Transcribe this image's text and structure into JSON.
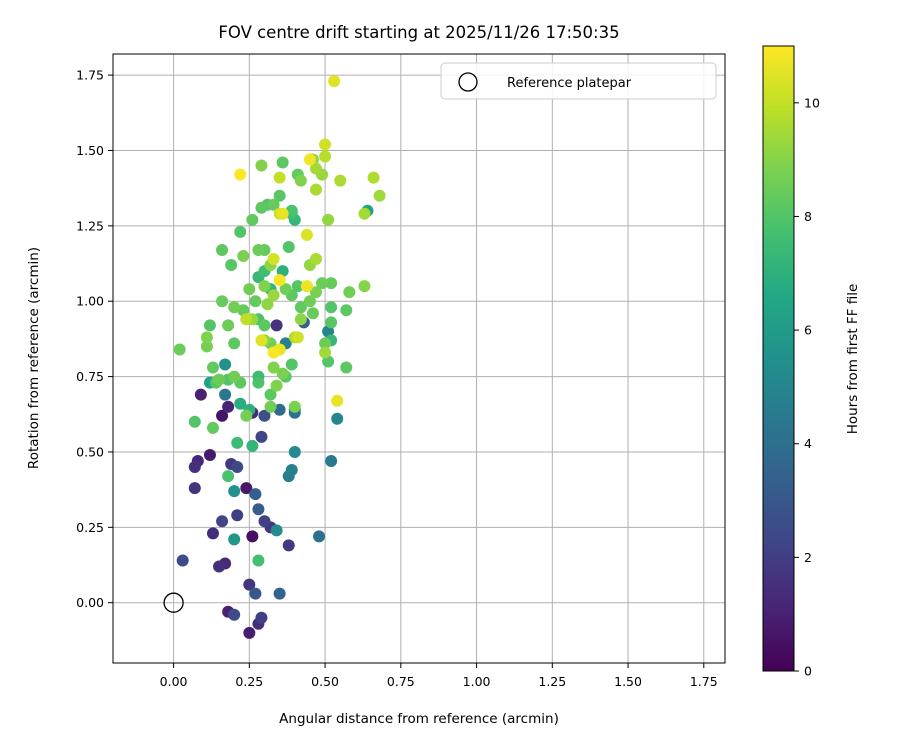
{
  "chart_data": {
    "type": "scatter",
    "title": "FOV centre drift starting at 2025/11/26 17:50:35",
    "xlabel": "Angular distance from reference (arcmin)",
    "ylabel": "Rotation from reference (arcmin)",
    "xlim": [
      -0.2,
      1.82
    ],
    "ylim": [
      -0.2,
      1.82
    ],
    "xticks": [
      0.0,
      0.25,
      0.5,
      0.75,
      1.0,
      1.25,
      1.5,
      1.75
    ],
    "yticks": [
      0.0,
      0.25,
      0.5,
      0.75,
      1.0,
      1.25,
      1.5,
      1.75
    ],
    "xtick_labels": [
      "0.00",
      "0.25",
      "0.50",
      "0.75",
      "1.00",
      "1.25",
      "1.50",
      "1.75"
    ],
    "ytick_labels": [
      "0.00",
      "0.25",
      "0.50",
      "0.75",
      "1.00",
      "1.25",
      "1.50",
      "1.75"
    ],
    "grid": true,
    "legend": {
      "position": "top-right",
      "entries": [
        "Reference platepar"
      ]
    },
    "reference_point": {
      "x": 0.0,
      "y": 0.0,
      "label": "Reference platepar"
    },
    "colorbar": {
      "label": "Hours from first FF file",
      "colormap": "viridis",
      "range": [
        0,
        11
      ],
      "ticks": [
        0,
        2,
        4,
        6,
        8,
        10
      ],
      "tick_labels": [
        "0",
        "2",
        "4",
        "6",
        "8",
        "10"
      ]
    },
    "points": [
      {
        "x": 0.03,
        "y": 0.14,
        "h": 2.5
      },
      {
        "x": 0.07,
        "y": 0.45,
        "h": 1.5
      },
      {
        "x": 0.08,
        "y": 0.47,
        "h": 1.2
      },
      {
        "x": 0.07,
        "y": 0.38,
        "h": 1.6
      },
      {
        "x": 0.09,
        "y": 0.69,
        "h": 1.0
      },
      {
        "x": 0.12,
        "y": 0.49,
        "h": 0.8
      },
      {
        "x": 0.13,
        "y": 0.23,
        "h": 1.4
      },
      {
        "x": 0.15,
        "y": 0.12,
        "h": 1.5
      },
      {
        "x": 0.17,
        "y": 0.13,
        "h": 1.3
      },
      {
        "x": 0.16,
        "y": 0.27,
        "h": 2.2
      },
      {
        "x": 0.16,
        "y": 0.62,
        "h": 0.6
      },
      {
        "x": 0.18,
        "y": 0.65,
        "h": 1.1
      },
      {
        "x": 0.19,
        "y": 0.46,
        "h": 1.8
      },
      {
        "x": 0.21,
        "y": 0.45,
        "h": 2.4
      },
      {
        "x": 0.21,
        "y": 0.29,
        "h": 2.0
      },
      {
        "x": 0.18,
        "y": -0.03,
        "h": 1.0
      },
      {
        "x": 0.2,
        "y": -0.04,
        "h": 2.5
      },
      {
        "x": 0.24,
        "y": 0.38,
        "h": 0.7
      },
      {
        "x": 0.25,
        "y": 0.06,
        "h": 1.7
      },
      {
        "x": 0.27,
        "y": 0.03,
        "h": 3.0
      },
      {
        "x": 0.25,
        "y": -0.1,
        "h": 0.9
      },
      {
        "x": 0.28,
        "y": -0.07,
        "h": 1.4
      },
      {
        "x": 0.29,
        "y": -0.05,
        "h": 2.0
      },
      {
        "x": 0.26,
        "y": 0.22,
        "h": 0.5
      },
      {
        "x": 0.28,
        "y": 0.31,
        "h": 3.2
      },
      {
        "x": 0.3,
        "y": 0.27,
        "h": 2.1
      },
      {
        "x": 0.32,
        "y": 0.25,
        "h": 1.7
      },
      {
        "x": 0.35,
        "y": 0.03,
        "h": 3.5
      },
      {
        "x": 0.38,
        "y": 0.19,
        "h": 1.8
      },
      {
        "x": 0.29,
        "y": 0.55,
        "h": 2.2
      },
      {
        "x": 0.27,
        "y": 0.36,
        "h": 3.3
      },
      {
        "x": 0.26,
        "y": 0.63,
        "h": 1.4
      },
      {
        "x": 0.3,
        "y": 0.62,
        "h": 2.6
      },
      {
        "x": 0.34,
        "y": 0.24,
        "h": 5.2
      },
      {
        "x": 0.48,
        "y": 0.22,
        "h": 4.1
      },
      {
        "x": 0.52,
        "y": 0.47,
        "h": 4.5
      },
      {
        "x": 0.54,
        "y": 0.61,
        "h": 5.0
      },
      {
        "x": 0.4,
        "y": 0.5,
        "h": 5.2
      },
      {
        "x": 0.39,
        "y": 0.44,
        "h": 4.8
      },
      {
        "x": 0.38,
        "y": 0.42,
        "h": 4.6
      },
      {
        "x": 0.4,
        "y": 0.63,
        "h": 4.0
      },
      {
        "x": 0.4,
        "y": 0.64,
        "h": 4.2
      },
      {
        "x": 0.35,
        "y": 0.64,
        "h": 3.8
      },
      {
        "x": 0.34,
        "y": 0.92,
        "h": 1.6
      },
      {
        "x": 0.43,
        "y": 0.93,
        "h": 3.4
      },
      {
        "x": 0.37,
        "y": 0.86,
        "h": 4.7
      },
      {
        "x": 0.51,
        "y": 0.9,
        "h": 5.0
      },
      {
        "x": 0.52,
        "y": 0.87,
        "h": 7.3
      },
      {
        "x": 0.2,
        "y": 0.37,
        "h": 5.6
      },
      {
        "x": 0.2,
        "y": 0.21,
        "h": 5.8
      },
      {
        "x": 0.28,
        "y": 0.14,
        "h": 7.7
      },
      {
        "x": 0.17,
        "y": 0.69,
        "h": 4.4
      },
      {
        "x": 0.17,
        "y": 0.79,
        "h": 5.6
      },
      {
        "x": 0.22,
        "y": 0.66,
        "h": 6.8
      },
      {
        "x": 0.21,
        "y": 0.53,
        "h": 7.5
      },
      {
        "x": 0.26,
        "y": 0.52,
        "h": 7.2
      },
      {
        "x": 0.25,
        "y": 0.64,
        "h": 7.0
      },
      {
        "x": 0.64,
        "y": 1.3,
        "h": 6.3
      },
      {
        "x": 0.12,
        "y": 0.73,
        "h": 6.3
      },
      {
        "x": 0.13,
        "y": 0.58,
        "h": 8.3
      },
      {
        "x": 0.07,
        "y": 0.6,
        "h": 8.0
      },
      {
        "x": 0.02,
        "y": 0.84,
        "h": 8.5
      },
      {
        "x": 0.11,
        "y": 0.85,
        "h": 8.7
      },
      {
        "x": 0.11,
        "y": 0.88,
        "h": 8.9
      },
      {
        "x": 0.12,
        "y": 0.92,
        "h": 8.0
      },
      {
        "x": 0.16,
        "y": 1.0,
        "h": 8.4
      },
      {
        "x": 0.16,
        "y": 1.17,
        "h": 8.2
      },
      {
        "x": 0.19,
        "y": 1.12,
        "h": 8.1
      },
      {
        "x": 0.18,
        "y": 0.92,
        "h": 8.5
      },
      {
        "x": 0.2,
        "y": 0.86,
        "h": 8.2
      },
      {
        "x": 0.2,
        "y": 0.98,
        "h": 8.6
      },
      {
        "x": 0.22,
        "y": 1.23,
        "h": 8.0
      },
      {
        "x": 0.23,
        "y": 1.15,
        "h": 8.8
      },
      {
        "x": 0.25,
        "y": 1.04,
        "h": 8.6
      },
      {
        "x": 0.26,
        "y": 1.27,
        "h": 8.3
      },
      {
        "x": 0.27,
        "y": 1.0,
        "h": 8.4
      },
      {
        "x": 0.28,
        "y": 1.17,
        "h": 8.5
      },
      {
        "x": 0.29,
        "y": 1.31,
        "h": 8.2
      },
      {
        "x": 0.29,
        "y": 1.45,
        "h": 8.9
      },
      {
        "x": 0.31,
        "y": 1.32,
        "h": 8.0
      },
      {
        "x": 0.33,
        "y": 1.32,
        "h": 8.4
      },
      {
        "x": 0.35,
        "y": 1.35,
        "h": 8.1
      },
      {
        "x": 0.36,
        "y": 1.46,
        "h": 8.2
      },
      {
        "x": 0.38,
        "y": 1.18,
        "h": 8.0
      },
      {
        "x": 0.39,
        "y": 1.3,
        "h": 7.8
      },
      {
        "x": 0.41,
        "y": 1.42,
        "h": 8.3
      },
      {
        "x": 0.42,
        "y": 1.4,
        "h": 8.9
      },
      {
        "x": 0.46,
        "y": 1.47,
        "h": 9.0
      },
      {
        "x": 0.47,
        "y": 1.44,
        "h": 9.5
      },
      {
        "x": 0.49,
        "y": 1.42,
        "h": 9.3
      },
      {
        "x": 0.47,
        "y": 1.37,
        "h": 9.6
      },
      {
        "x": 0.5,
        "y": 1.48,
        "h": 9.8
      },
      {
        "x": 0.51,
        "y": 1.27,
        "h": 9.2
      },
      {
        "x": 0.55,
        "y": 1.4,
        "h": 9.6
      },
      {
        "x": 0.63,
        "y": 1.29,
        "h": 9.5
      },
      {
        "x": 0.66,
        "y": 1.41,
        "h": 9.7
      },
      {
        "x": 0.68,
        "y": 1.35,
        "h": 9.4
      },
      {
        "x": 0.5,
        "y": 1.52,
        "h": 10.2
      },
      {
        "x": 0.53,
        "y": 1.73,
        "h": 10.5
      },
      {
        "x": 0.45,
        "y": 1.47,
        "h": 10.8
      },
      {
        "x": 0.22,
        "y": 1.42,
        "h": 11.0
      },
      {
        "x": 0.35,
        "y": 1.41,
        "h": 10.0
      },
      {
        "x": 0.36,
        "y": 1.29,
        "h": 10.6
      },
      {
        "x": 0.35,
        "y": 1.29,
        "h": 10.2
      },
      {
        "x": 0.44,
        "y": 1.22,
        "h": 10.4
      },
      {
        "x": 0.47,
        "y": 1.14,
        "h": 9.6
      },
      {
        "x": 0.45,
        "y": 1.12,
        "h": 9.2
      },
      {
        "x": 0.44,
        "y": 1.05,
        "h": 10.7
      },
      {
        "x": 0.32,
        "y": 1.12,
        "h": 9.1
      },
      {
        "x": 0.33,
        "y": 1.14,
        "h": 10.3
      },
      {
        "x": 0.3,
        "y": 1.05,
        "h": 8.9
      },
      {
        "x": 0.31,
        "y": 0.99,
        "h": 9.1
      },
      {
        "x": 0.33,
        "y": 1.02,
        "h": 9.3
      },
      {
        "x": 0.35,
        "y": 1.07,
        "h": 10.9
      },
      {
        "x": 0.37,
        "y": 1.04,
        "h": 8.6
      },
      {
        "x": 0.39,
        "y": 1.02,
        "h": 8.2
      },
      {
        "x": 0.41,
        "y": 1.05,
        "h": 8.0
      },
      {
        "x": 0.42,
        "y": 0.98,
        "h": 8.3
      },
      {
        "x": 0.45,
        "y": 1.0,
        "h": 8.6
      },
      {
        "x": 0.47,
        "y": 1.03,
        "h": 8.8
      },
      {
        "x": 0.49,
        "y": 1.06,
        "h": 8.5
      },
      {
        "x": 0.52,
        "y": 1.06,
        "h": 8.4
      },
      {
        "x": 0.58,
        "y": 1.03,
        "h": 8.6
      },
      {
        "x": 0.63,
        "y": 1.05,
        "h": 9.0
      },
      {
        "x": 0.57,
        "y": 0.97,
        "h": 8.2
      },
      {
        "x": 0.52,
        "y": 0.98,
        "h": 8.0
      },
      {
        "x": 0.52,
        "y": 0.93,
        "h": 8.1
      },
      {
        "x": 0.5,
        "y": 0.86,
        "h": 8.5
      },
      {
        "x": 0.5,
        "y": 0.83,
        "h": 9.4
      },
      {
        "x": 0.51,
        "y": 0.8,
        "h": 8.0
      },
      {
        "x": 0.57,
        "y": 0.78,
        "h": 8.2
      },
      {
        "x": 0.54,
        "y": 0.67,
        "h": 10.6
      },
      {
        "x": 0.46,
        "y": 0.96,
        "h": 8.4
      },
      {
        "x": 0.42,
        "y": 0.94,
        "h": 9.1
      },
      {
        "x": 0.4,
        "y": 0.88,
        "h": 9.6
      },
      {
        "x": 0.41,
        "y": 0.88,
        "h": 10.2
      },
      {
        "x": 0.39,
        "y": 0.79,
        "h": 8.0
      },
      {
        "x": 0.36,
        "y": 0.76,
        "h": 8.8
      },
      {
        "x": 0.37,
        "y": 0.75,
        "h": 8.1
      },
      {
        "x": 0.35,
        "y": 0.84,
        "h": 9.7
      },
      {
        "x": 0.35,
        "y": 0.84,
        "h": 10.7
      },
      {
        "x": 0.33,
        "y": 0.83,
        "h": 10.9
      },
      {
        "x": 0.33,
        "y": 0.78,
        "h": 8.9
      },
      {
        "x": 0.32,
        "y": 0.86,
        "h": 8.6
      },
      {
        "x": 0.3,
        "y": 0.87,
        "h": 9.0
      },
      {
        "x": 0.29,
        "y": 0.87,
        "h": 10.5
      },
      {
        "x": 0.3,
        "y": 0.92,
        "h": 8.2
      },
      {
        "x": 0.28,
        "y": 0.94,
        "h": 7.9
      },
      {
        "x": 0.26,
        "y": 0.94,
        "h": 9.3
      },
      {
        "x": 0.24,
        "y": 0.94,
        "h": 9.9
      },
      {
        "x": 0.23,
        "y": 0.97,
        "h": 8.4
      },
      {
        "x": 0.2,
        "y": 0.75,
        "h": 8.6
      },
      {
        "x": 0.22,
        "y": 0.73,
        "h": 8.2
      },
      {
        "x": 0.18,
        "y": 0.74,
        "h": 8.0
      },
      {
        "x": 0.15,
        "y": 0.74,
        "h": 8.5
      },
      {
        "x": 0.14,
        "y": 0.73,
        "h": 8.1
      },
      {
        "x": 0.13,
        "y": 0.78,
        "h": 8.3
      },
      {
        "x": 0.24,
        "y": 0.62,
        "h": 8.7
      },
      {
        "x": 0.28,
        "y": 0.75,
        "h": 7.5
      },
      {
        "x": 0.28,
        "y": 0.73,
        "h": 7.8
      },
      {
        "x": 0.32,
        "y": 0.69,
        "h": 8.2
      },
      {
        "x": 0.32,
        "y": 0.65,
        "h": 8.6
      },
      {
        "x": 0.34,
        "y": 0.72,
        "h": 8.9
      },
      {
        "x": 0.4,
        "y": 0.65,
        "h": 8.8
      },
      {
        "x": 0.18,
        "y": 0.42,
        "h": 7.8
      },
      {
        "x": 0.28,
        "y": 1.08,
        "h": 7.3
      },
      {
        "x": 0.3,
        "y": 1.1,
        "h": 7.6
      },
      {
        "x": 0.3,
        "y": 1.17,
        "h": 8.4
      },
      {
        "x": 0.4,
        "y": 1.27,
        "h": 7.2
      },
      {
        "x": 0.39,
        "y": 1.29,
        "h": 7.5
      },
      {
        "x": 0.36,
        "y": 1.1,
        "h": 7.0
      },
      {
        "x": 0.32,
        "y": 1.04,
        "h": 7.2
      }
    ]
  }
}
